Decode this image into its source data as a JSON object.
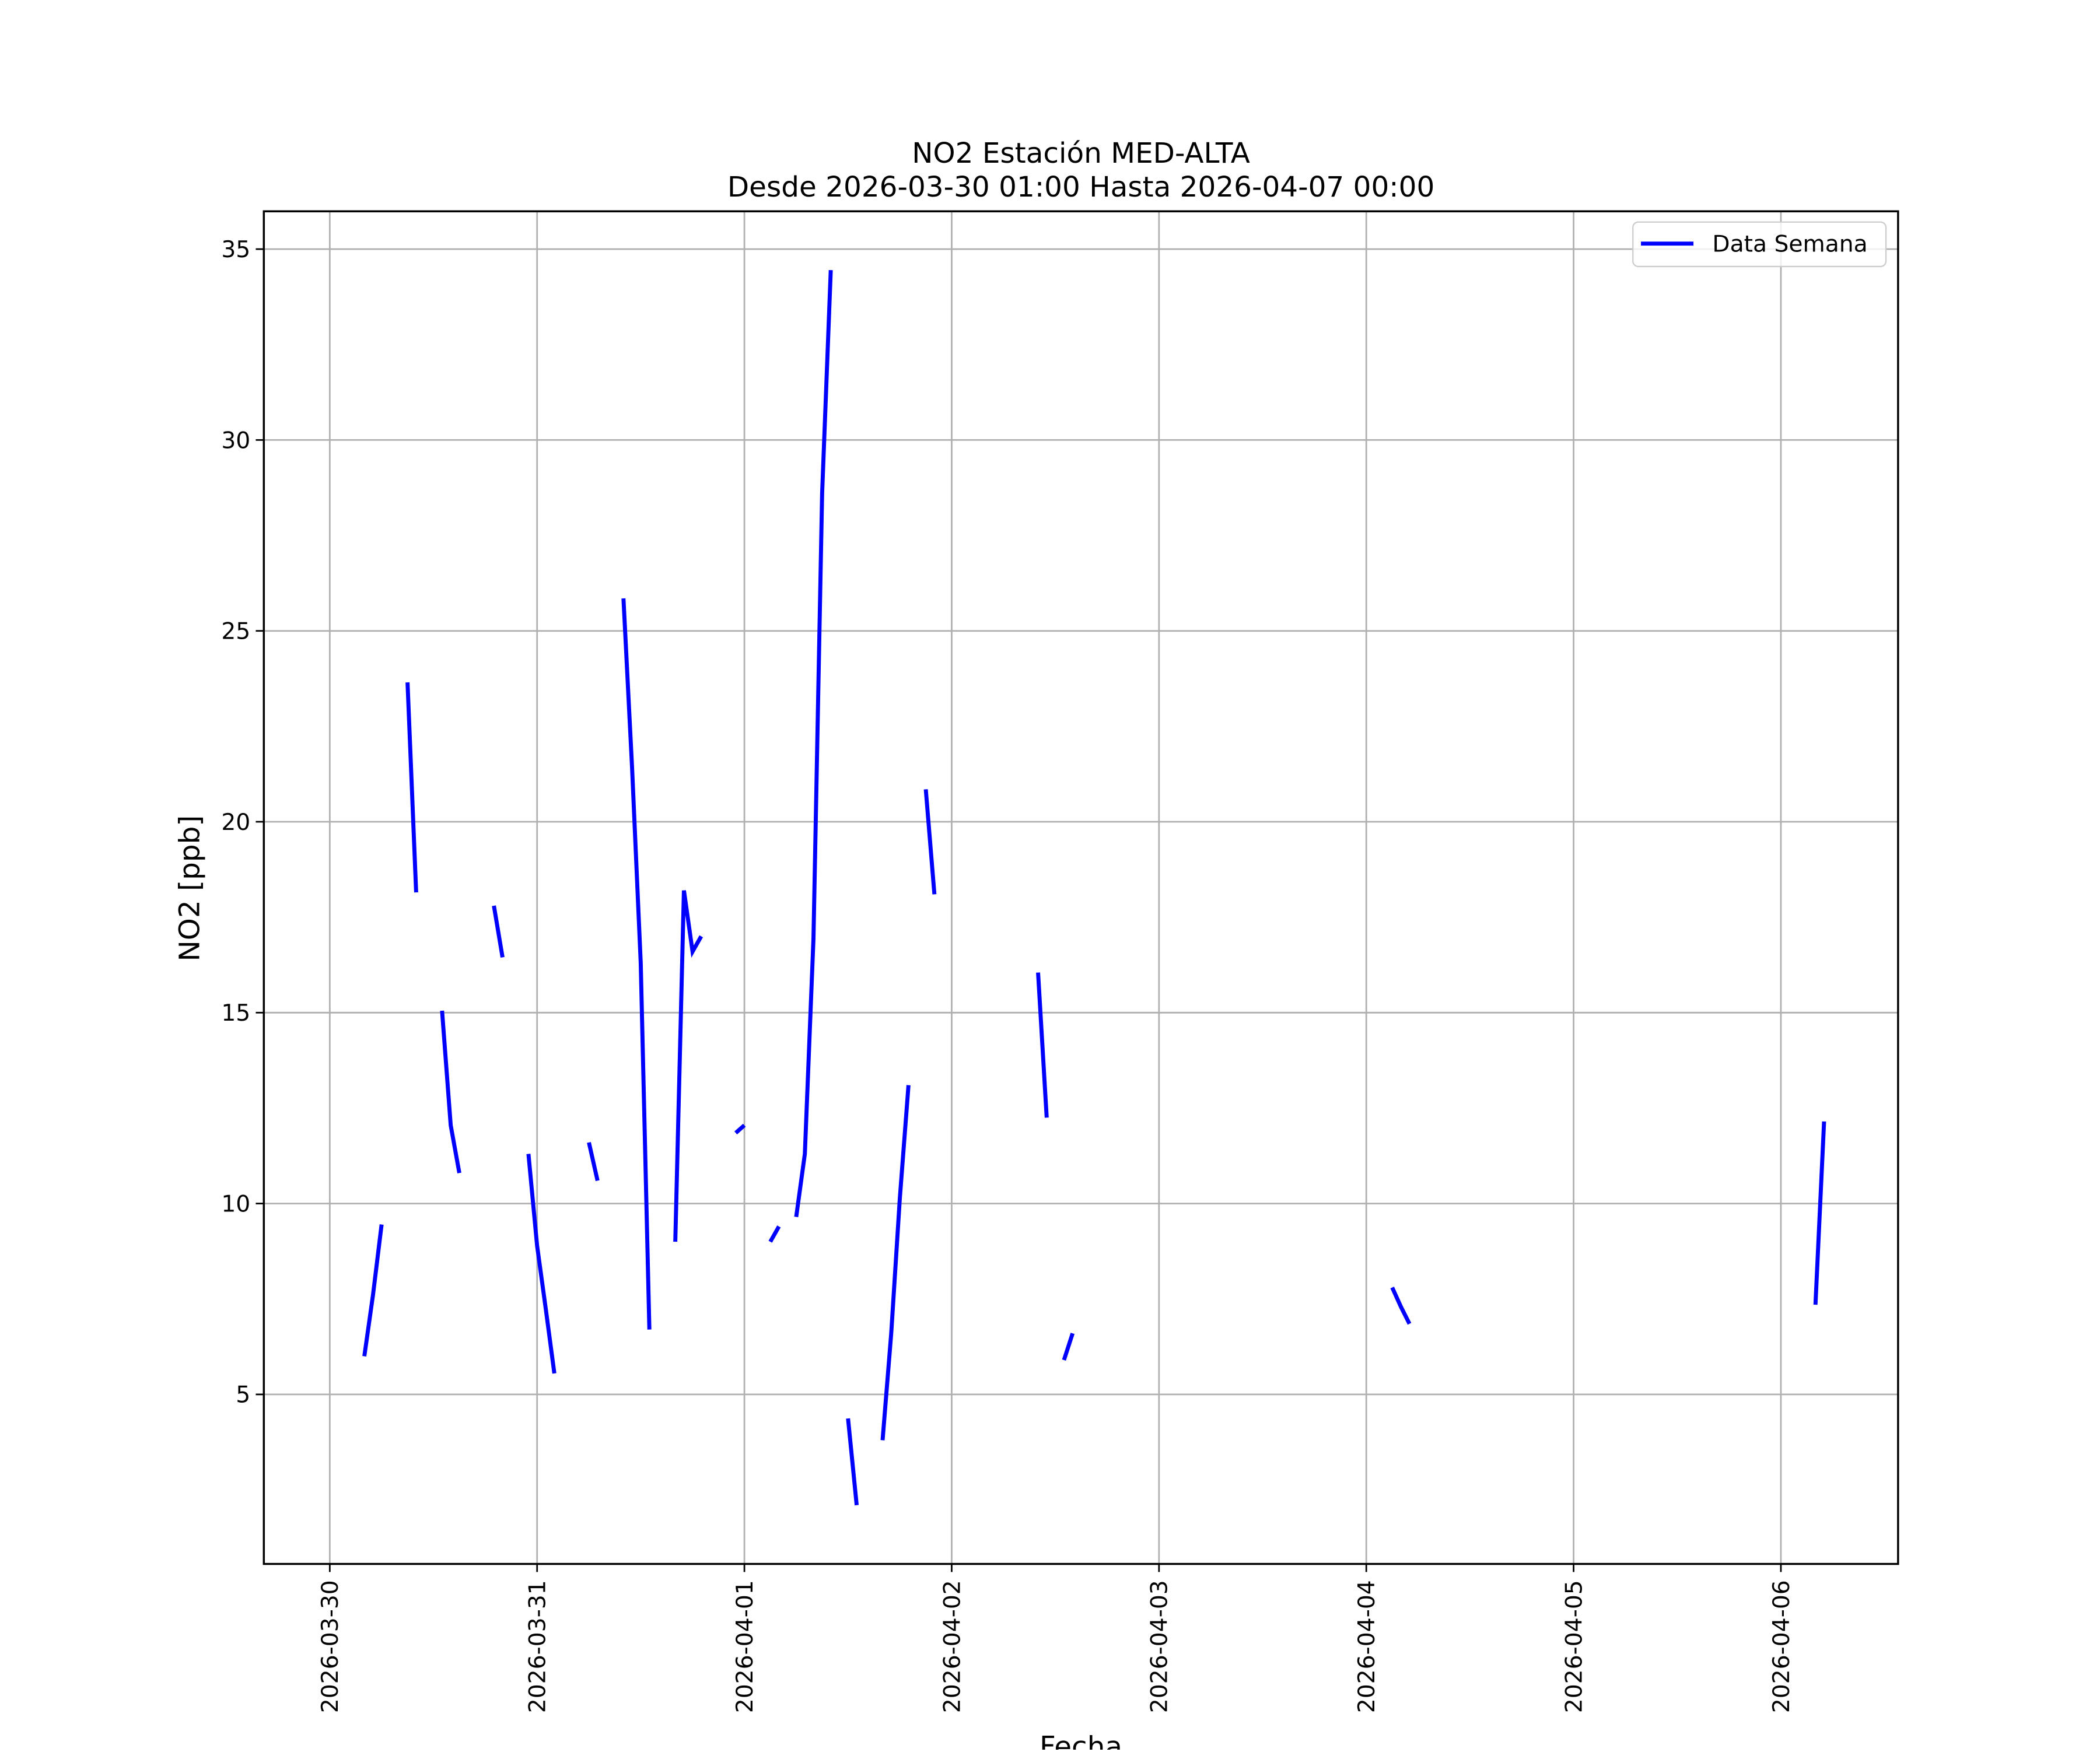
{
  "chart_data": {
    "type": "line",
    "title": "NO2 Estación MED-ALTA",
    "subtitle": "Desde 2026-03-30 01:00 Hasta 2026-04-07 00:00",
    "x_label": "Fecha",
    "y_label": "NO2 [ppb]",
    "x": [
      "2026-03-30 04:00",
      "2026-03-30 05:00",
      "2026-03-30 06:00",
      "2026-03-30 07:00",
      "2026-03-30 09:00",
      "2026-03-30 10:00",
      "2026-03-30 11:00",
      "2026-03-30 13:00",
      "2026-03-30 14:00",
      "2026-03-30 15:00",
      "2026-03-30 16:00",
      "2026-03-30 19:00",
      "2026-03-30 20:00",
      "2026-03-30 21:00",
      "2026-03-30 23:00",
      "2026-03-31 00:00",
      "2026-03-31 01:00",
      "2026-03-31 02:00",
      "2026-03-31 03:00",
      "2026-03-31 06:00",
      "2026-03-31 07:00",
      "2026-03-31 08:00",
      "2026-03-31 10:00",
      "2026-03-31 11:00",
      "2026-03-31 12:00",
      "2026-03-31 13:00",
      "2026-03-31 14:00",
      "2026-03-31 16:00",
      "2026-03-31 17:00",
      "2026-03-31 18:00",
      "2026-03-31 19:00",
      "2026-03-31 20:00",
      "2026-03-31 23:00",
      "2026-04-01 00:00",
      "2026-04-01 01:00",
      "2026-04-01 03:00",
      "2026-04-01 04:00",
      "2026-04-01 05:00",
      "2026-04-01 06:00",
      "2026-04-01 07:00",
      "2026-04-01 08:00",
      "2026-04-01 09:00",
      "2026-04-01 10:00",
      "2026-04-01 11:00",
      "2026-04-01 12:00",
      "2026-04-01 13:00",
      "2026-04-01 14:00",
      "2026-04-01 16:00",
      "2026-04-01 17:00",
      "2026-04-01 18:00",
      "2026-04-01 19:00",
      "2026-04-01 20:00",
      "2026-04-01 21:00",
      "2026-04-01 22:00",
      "2026-04-01 23:00",
      "2026-04-02 10:00",
      "2026-04-02 11:00",
      "2026-04-02 12:00",
      "2026-04-02 13:00",
      "2026-04-02 14:00",
      "2026-04-02 15:00",
      "2026-04-04 03:00",
      "2026-04-04 04:00",
      "2026-04-04 05:00",
      "2026-04-04 06:00",
      "2026-04-06 04:00",
      "2026-04-06 05:00"
    ],
    "series": [
      {
        "name": "Data Semana",
        "color": "#0000ff",
        "values": [
          6.0,
          7.6,
          9.45,
          null,
          23.65,
          18.15,
          null,
          15.05,
          12.05,
          10.8,
          null,
          17.8,
          16.45,
          null,
          11.3,
          8.9,
          7.25,
          5.55,
          null,
          11.6,
          10.6,
          null,
          25.85,
          21.4,
          16.3,
          6.7,
          null,
          9.0,
          18.2,
          16.6,
          17.0,
          null,
          11.85,
          12.05,
          null,
          9.0,
          9.4,
          null,
          9.65,
          11.3,
          16.95,
          28.6,
          34.45,
          null,
          4.37,
          2.1,
          null,
          3.8,
          6.6,
          10.15,
          13.1,
          null,
          20.85,
          18.1,
          null,
          16.05,
          12.25,
          null,
          5.9,
          6.6,
          null,
          7.8,
          7.3,
          6.85,
          null,
          7.35,
          12.15
        ]
      }
    ],
    "xlim": [
      "2026-03-29 16:22",
      "2026-04-06 13:34"
    ],
    "xticks": [
      "2026-03-30",
      "2026-03-31",
      "2026-04-01",
      "2026-04-02",
      "2026-04-03",
      "2026-04-04",
      "2026-04-05",
      "2026-04-06"
    ],
    "ylim": [
      0.56,
      35.99
    ],
    "yticks": [
      5,
      10,
      15,
      20,
      25,
      30,
      35
    ],
    "grid": true,
    "legend": "upper right"
  }
}
